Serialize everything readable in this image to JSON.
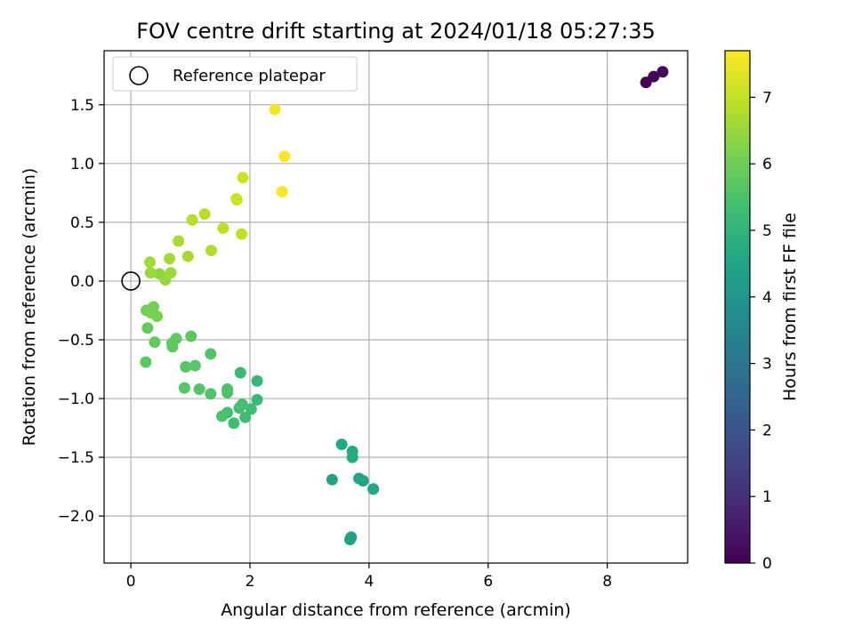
{
  "chart_data": {
    "type": "scatter",
    "title": "FOV centre drift starting at 2024/01/18 05:27:35",
    "xlabel": "Angular distance from reference (arcmin)",
    "ylabel": "Rotation from reference (arcmin)",
    "xlim": [
      -0.45,
      9.35
    ],
    "ylim": [
      -2.4,
      1.96
    ],
    "xticks": [
      0,
      2,
      4,
      6,
      8
    ],
    "yticks": [
      -2.0,
      -1.5,
      -1.0,
      -0.5,
      0.0,
      0.5,
      1.0,
      1.5
    ],
    "xtick_labels": [
      "0",
      "2",
      "4",
      "6",
      "8"
    ],
    "ytick_labels": [
      "−2.0",
      "−1.5",
      "−1.0",
      "−0.5",
      "0.0",
      "0.5",
      "1.0",
      "1.5"
    ],
    "grid": true,
    "legend": {
      "position": "top-left",
      "entries": [
        {
          "label": "Reference platepar",
          "marker": "open-circle"
        }
      ]
    },
    "reference_point": {
      "x": 0.0,
      "y": 0.0
    },
    "colorbar": {
      "label": "Hours from first FF file",
      "range": [
        0,
        7.7
      ],
      "ticks": [
        0,
        1,
        2,
        3,
        4,
        5,
        6,
        7
      ],
      "tick_labels": [
        "0",
        "1",
        "2",
        "3",
        "4",
        "5",
        "6",
        "7"
      ],
      "colormap": "viridis"
    },
    "points": [
      {
        "x": 8.65,
        "y": 1.69,
        "t": 0.0
      },
      {
        "x": 8.78,
        "y": 1.74,
        "t": 0.05
      },
      {
        "x": 8.93,
        "y": 1.78,
        "t": 0.1
      },
      {
        "x": 3.68,
        "y": -2.2,
        "t": 4.35
      },
      {
        "x": 3.7,
        "y": -2.18,
        "t": 4.38
      },
      {
        "x": 3.38,
        "y": -1.69,
        "t": 4.45
      },
      {
        "x": 3.83,
        "y": -1.68,
        "t": 4.5
      },
      {
        "x": 3.9,
        "y": -1.7,
        "t": 4.52
      },
      {
        "x": 4.07,
        "y": -1.77,
        "t": 4.55
      },
      {
        "x": 3.54,
        "y": -1.39,
        "t": 4.62
      },
      {
        "x": 3.72,
        "y": -1.45,
        "t": 4.65
      },
      {
        "x": 3.72,
        "y": -1.5,
        "t": 4.68
      },
      {
        "x": 2.12,
        "y": -0.85,
        "t": 5.1
      },
      {
        "x": 2.12,
        "y": -1.01,
        "t": 5.15
      },
      {
        "x": 1.84,
        "y": -0.78,
        "t": 5.2
      },
      {
        "x": 2.02,
        "y": -1.09,
        "t": 5.25
      },
      {
        "x": 1.92,
        "y": -1.16,
        "t": 5.3
      },
      {
        "x": 1.73,
        "y": -1.21,
        "t": 5.33
      },
      {
        "x": 1.82,
        "y": -1.08,
        "t": 5.36
      },
      {
        "x": 1.87,
        "y": -1.05,
        "t": 5.4
      },
      {
        "x": 1.62,
        "y": -1.12,
        "t": 5.43
      },
      {
        "x": 1.53,
        "y": -1.15,
        "t": 5.46
      },
      {
        "x": 1.62,
        "y": -0.92,
        "t": 5.5
      },
      {
        "x": 1.62,
        "y": -0.95,
        "t": 5.52
      },
      {
        "x": 1.34,
        "y": -0.96,
        "t": 5.55
      },
      {
        "x": 1.34,
        "y": -0.62,
        "t": 5.58
      },
      {
        "x": 1.15,
        "y": -0.92,
        "t": 5.6
      },
      {
        "x": 0.9,
        "y": -0.91,
        "t": 5.63
      },
      {
        "x": 0.92,
        "y": -0.73,
        "t": 5.66
      },
      {
        "x": 1.08,
        "y": -0.72,
        "t": 5.68
      },
      {
        "x": 0.25,
        "y": -0.69,
        "t": 5.7
      },
      {
        "x": 1.01,
        "y": -0.47,
        "t": 5.73
      },
      {
        "x": 0.76,
        "y": -0.49,
        "t": 5.76
      },
      {
        "x": 0.69,
        "y": -0.53,
        "t": 5.78
      },
      {
        "x": 0.7,
        "y": -0.56,
        "t": 5.8
      },
      {
        "x": 0.4,
        "y": -0.52,
        "t": 5.83
      },
      {
        "x": 0.28,
        "y": -0.4,
        "t": 5.86
      },
      {
        "x": 0.26,
        "y": -0.25,
        "t": 6.0
      },
      {
        "x": 0.38,
        "y": -0.22,
        "t": 6.05
      },
      {
        "x": 0.44,
        "y": -0.3,
        "t": 6.1
      },
      {
        "x": 0.34,
        "y": -0.27,
        "t": 6.12
      },
      {
        "x": 0.48,
        "y": 0.06,
        "t": 6.4
      },
      {
        "x": 0.58,
        "y": 0.01,
        "t": 6.45
      },
      {
        "x": 0.33,
        "y": 0.07,
        "t": 6.5
      },
      {
        "x": 0.67,
        "y": 0.07,
        "t": 6.55
      },
      {
        "x": 0.32,
        "y": 0.16,
        "t": 6.6
      },
      {
        "x": 0.65,
        "y": 0.19,
        "t": 6.62
      },
      {
        "x": 0.96,
        "y": 0.21,
        "t": 6.65
      },
      {
        "x": 0.8,
        "y": 0.34,
        "t": 6.7
      },
      {
        "x": 1.35,
        "y": 0.26,
        "t": 6.8
      },
      {
        "x": 1.03,
        "y": 0.52,
        "t": 6.85
      },
      {
        "x": 1.24,
        "y": 0.57,
        "t": 6.9
      },
      {
        "x": 1.55,
        "y": 0.45,
        "t": 6.95
      },
      {
        "x": 1.86,
        "y": 0.4,
        "t": 7.0
      },
      {
        "x": 1.77,
        "y": 0.7,
        "t": 7.05
      },
      {
        "x": 1.78,
        "y": 0.69,
        "t": 7.08
      },
      {
        "x": 1.88,
        "y": 0.88,
        "t": 7.15
      },
      {
        "x": 2.42,
        "y": 1.46,
        "t": 7.6
      },
      {
        "x": 2.58,
        "y": 1.06,
        "t": 7.62
      },
      {
        "x": 2.54,
        "y": 0.76,
        "t": 7.65
      }
    ]
  }
}
